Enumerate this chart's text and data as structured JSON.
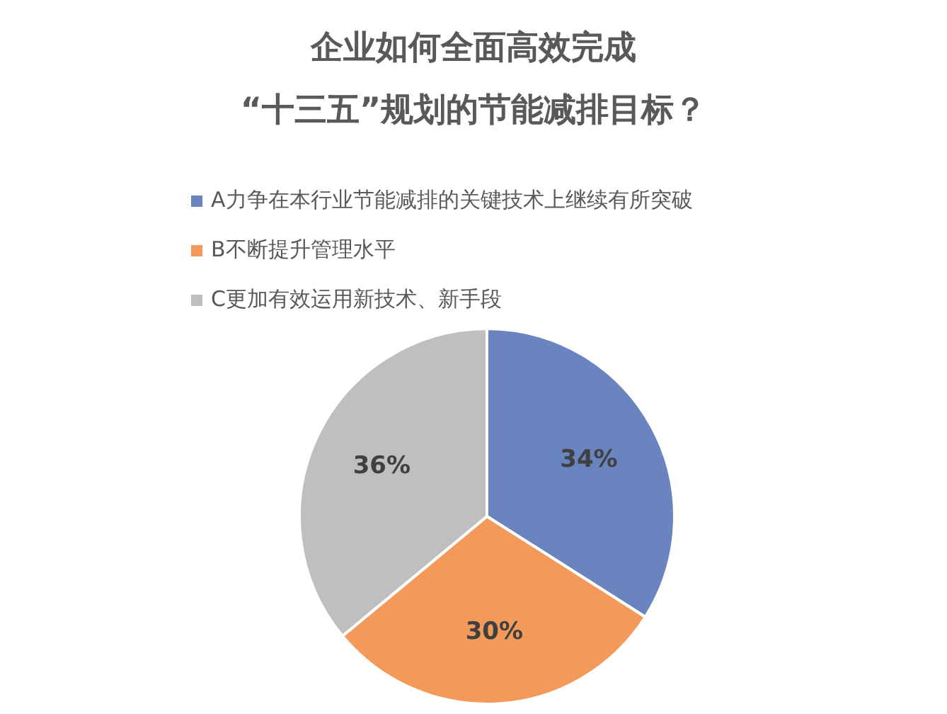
{
  "chart_data": {
    "type": "pie",
    "title": "企业如何全面高效完成\n“十三五”规划的节能减排目标？",
    "categories": [
      "A力争在本行业节能减排的关键技术上继续有所突破",
      "B不断提升管理水平",
      "C更加有效运用新技术、新手段"
    ],
    "values": [
      34,
      30,
      36
    ],
    "colors": [
      "#6a84c0",
      "#f39a5a",
      "#bfbfbf"
    ],
    "value_labels": [
      "34%",
      "30%",
      "36%"
    ],
    "legend": "top"
  }
}
